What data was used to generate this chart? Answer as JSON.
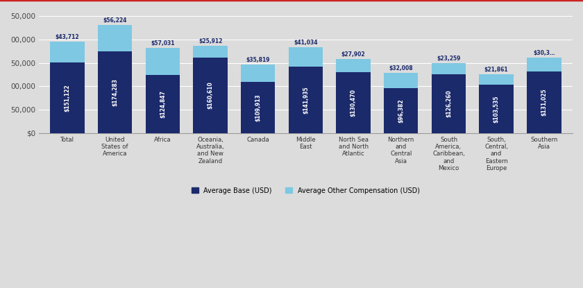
{
  "categories": [
    "Total",
    "United\nStates of\nAmerica",
    "Africa",
    "Oceania,\nAustralia,\nand New\nZealand",
    "Canada",
    "Middle\nEast",
    "North Sea\nand North\nAtlantic",
    "Northern\nand\nCentral\nAsia",
    "South\nAmerica,\nCaribbean,\nand\nMexico",
    "South,\nCentral,\nand\nEastern\nEurope",
    "Southern\nAsia"
  ],
  "base_values": [
    151122,
    174283,
    124847,
    160610,
    109913,
    141935,
    130470,
    96382,
    126260,
    103535,
    131025
  ],
  "other_values": [
    43712,
    56224,
    57031,
    25912,
    35819,
    41034,
    27902,
    32008,
    23259,
    21861,
    30375
  ],
  "base_labels": [
    "$151,122",
    "$174,283",
    "$124,847",
    "$160,610",
    "$109,913",
    "$141,935",
    "$130,470",
    "$96,382",
    "$126,260",
    "$103,535",
    "$131,025"
  ],
  "other_labels": [
    "$43,712",
    "$56,224",
    "$57,031",
    "$25,912",
    "$35,819",
    "$41,034",
    "$27,902",
    "$32,008",
    "$23,259",
    "$21,861",
    "$30,3…"
  ],
  "bar_color_base": "#1b2a6b",
  "bar_color_other": "#7ec8e3",
  "background_color": "#dcdcdc",
  "ylim": [
    0,
    250000
  ],
  "yticks": [
    0,
    50000,
    100000,
    150000,
    200000,
    250000
  ],
  "ytick_labels": [
    "$0",
    "50,000",
    "00,000",
    "50,000",
    "00,000",
    "50,000"
  ],
  "legend_base": "Average Base (USD)",
  "legend_other": "Average Other Compensation (USD)",
  "top_border_color": "#cc2222",
  "grid_color": "#ffffff",
  "watermark_color": "#c8ccd8"
}
